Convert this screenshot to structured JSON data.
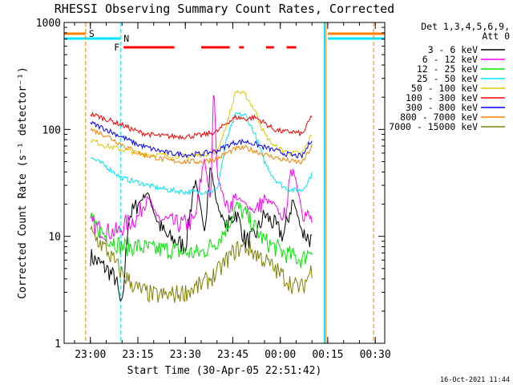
{
  "chart_data": {
    "type": "line",
    "title": "RHESSI Observing Summary Count Rates, Corrected",
    "xlabel": "Start Time (30-Apr-05 22:51:42)",
    "ylabel": "Corrected Count Rate (s⁻¹ detector⁻¹)",
    "yscale": "log",
    "ylim": [
      1,
      1000
    ],
    "xlim": [
      "22:51:42",
      "00:33:00"
    ],
    "x_ticks": [
      "23:00",
      "23:15",
      "23:30",
      "23:45",
      "00:00",
      "00:15",
      "00:30"
    ],
    "y_ticks": [
      "1",
      "10",
      "100",
      "1000"
    ],
    "legend_title": [
      "Det 1,3,4,5,6,9,",
      "Att 0"
    ],
    "legend_position": "right",
    "timestamp": "16-Oct-2021 11:44",
    "flags": [
      {
        "label": "S",
        "color": "#ff8000",
        "intervals": [
          [
            "22:51:42",
            "22:58:30"
          ],
          [
            "00:15:00",
            "00:33:00"
          ]
        ]
      },
      {
        "label": "N",
        "color": "#00e5ff",
        "intervals": [
          [
            "22:51:42",
            "23:09:30"
          ],
          [
            "00:15:00",
            "00:33:00"
          ]
        ]
      },
      {
        "label": "F",
        "color": "#ff0000",
        "intervals": [
          [
            "23:10:30",
            "23:26:30"
          ],
          [
            "23:35:00",
            "23:44:00"
          ],
          [
            "23:47:00",
            "23:48:30"
          ],
          [
            "23:55:30",
            "23:58:00"
          ],
          [
            "00:02:00",
            "00:05:00"
          ]
        ]
      }
    ],
    "series": [
      {
        "name": "3 - 6 keV",
        "color": "#000000",
        "t": [
          "23:00",
          "23:05",
          "23:08",
          "23:10",
          "23:12",
          "23:15",
          "23:18",
          "23:21",
          "23:24",
          "23:27",
          "23:30",
          "23:33",
          "23:36",
          "23:38",
          "23:40",
          "23:43",
          "23:46",
          "23:49",
          "23:52",
          "23:55",
          "23:58",
          "00:01",
          "00:04",
          "00:07",
          "00:10"
        ],
        "v": [
          6.5,
          5,
          4,
          2,
          15,
          20,
          26,
          14,
          10,
          9,
          8,
          35,
          12,
          45,
          20,
          12,
          17,
          9,
          10,
          16,
          13,
          10,
          22,
          11,
          9
        ]
      },
      {
        "name": "6 - 12 keV",
        "color": "#ff00ff",
        "t": [
          "23:00",
          "23:05",
          "23:09",
          "23:11",
          "23:15",
          "23:18",
          "23:21",
          "23:24",
          "23:27",
          "23:30",
          "23:33",
          "23:36",
          "23:38",
          "23:39",
          "23:40",
          "23:43",
          "23:46",
          "23:49",
          "23:52",
          "23:55",
          "23:58",
          "00:01",
          "00:04",
          "00:07",
          "00:10"
        ],
        "v": [
          13,
          11,
          11,
          13,
          15,
          25,
          15,
          14,
          13,
          13,
          14,
          55,
          20,
          300,
          40,
          18,
          23,
          20,
          17,
          22,
          20,
          14,
          45,
          17,
          14
        ]
      },
      {
        "name": "12 - 25 keV",
        "color": "#00e600",
        "t": [
          "23:00",
          "23:05",
          "23:10",
          "23:15",
          "23:20",
          "23:25",
          "23:30",
          "23:35",
          "23:40",
          "23:43",
          "23:46",
          "23:49",
          "23:52",
          "23:55",
          "23:58",
          "00:01",
          "00:04",
          "00:07",
          "00:10"
        ],
        "v": [
          14,
          10,
          8,
          8,
          7.5,
          7.5,
          7,
          7,
          9,
          12,
          19,
          16,
          12,
          9,
          8,
          7,
          6.5,
          6,
          8
        ]
      },
      {
        "name": "25 - 50 keV",
        "color": "#00e5ff",
        "t": [
          "23:00",
          "23:05",
          "23:10",
          "23:15",
          "23:20",
          "23:25",
          "23:30",
          "23:35",
          "23:40",
          "23:43",
          "23:46",
          "23:49",
          "23:52",
          "23:55",
          "23:58",
          "00:01",
          "00:04",
          "00:07",
          "00:10"
        ],
        "v": [
          55,
          45,
          35,
          32,
          29,
          27,
          26,
          26,
          27,
          80,
          140,
          135,
          90,
          50,
          35,
          29,
          27,
          27,
          38
        ]
      },
      {
        "name": "50 - 100 keV",
        "color": "#e6c800",
        "t": [
          "23:00",
          "23:05",
          "23:10",
          "23:15",
          "23:20",
          "23:25",
          "23:30",
          "23:35",
          "23:40",
          "23:43",
          "23:46",
          "23:49",
          "23:52",
          "23:55",
          "23:58",
          "00:01",
          "00:04",
          "00:07",
          "00:10"
        ],
        "v": [
          80,
          70,
          65,
          60,
          58,
          57,
          56,
          58,
          62,
          110,
          230,
          210,
          150,
          90,
          70,
          63,
          60,
          60,
          90
        ]
      },
      {
        "name": "100 - 300 keV",
        "color": "#ff0000",
        "t": [
          "23:00",
          "23:05",
          "23:10",
          "23:15",
          "23:20",
          "23:25",
          "23:30",
          "23:35",
          "23:40",
          "23:43",
          "23:46",
          "23:49",
          "23:52",
          "23:55",
          "23:58",
          "00:01",
          "00:04",
          "00:07",
          "00:10"
        ],
        "v": [
          140,
          125,
          110,
          95,
          88,
          86,
          86,
          88,
          95,
          115,
          130,
          125,
          130,
          115,
          100,
          95,
          95,
          90,
          135
        ]
      },
      {
        "name": "300 - 800 keV",
        "color": "#0000ff",
        "t": [
          "23:00",
          "23:05",
          "23:10",
          "23:15",
          "23:20",
          "23:25",
          "23:30",
          "23:35",
          "23:40",
          "23:43",
          "23:46",
          "23:49",
          "23:52",
          "23:55",
          "23:58",
          "00:01",
          "00:04",
          "00:07",
          "00:10"
        ],
        "v": [
          115,
          100,
          85,
          72,
          65,
          60,
          58,
          59,
          63,
          70,
          76,
          77,
          73,
          68,
          64,
          60,
          57,
          56,
          82
        ]
      },
      {
        "name": "800 - 7000 keV",
        "color": "#ff8000",
        "t": [
          "23:00",
          "23:05",
          "23:10",
          "23:15",
          "23:20",
          "23:25",
          "23:30",
          "23:35",
          "23:40",
          "23:43",
          "23:46",
          "23:49",
          "23:52",
          "23:55",
          "23:58",
          "00:01",
          "00:04",
          "00:07",
          "00:10"
        ],
        "v": [
          100,
          88,
          72,
          60,
          55,
          51,
          50,
          50,
          53,
          60,
          66,
          67,
          63,
          58,
          55,
          52,
          50,
          49,
          70
        ]
      },
      {
        "name": "7000 - 15000 keV",
        "color": "#808000",
        "t": [
          "23:00",
          "23:05",
          "23:10",
          "23:15",
          "23:20",
          "23:25",
          "23:30",
          "23:35",
          "23:40",
          "23:43",
          "23:46",
          "23:49",
          "23:52",
          "23:55",
          "23:58",
          "00:01",
          "00:04",
          "00:07",
          "00:10"
        ],
        "v": [
          11,
          7.5,
          4.5,
          3.2,
          2.8,
          2.8,
          3,
          3.5,
          4.5,
          6,
          7.5,
          8,
          7,
          6,
          5,
          4.2,
          3.5,
          3.3,
          5
        ]
      }
    ]
  }
}
